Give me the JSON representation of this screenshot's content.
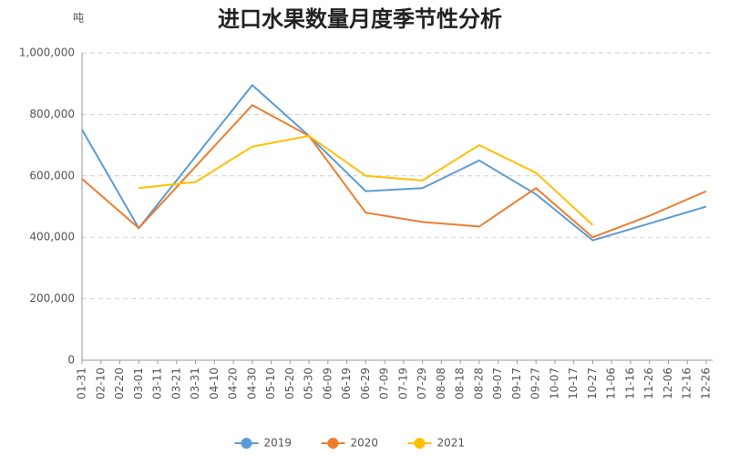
{
  "chart_data": {
    "type": "line",
    "title": "进口水果数量月度季节性分析",
    "y_label": "吨",
    "categories": [
      "01-31",
      "02-10",
      "02-20",
      "03-01",
      "03-11",
      "03-21",
      "03-31",
      "04-10",
      "04-20",
      "04-30",
      "05-10",
      "05-20",
      "05-30",
      "06-09",
      "06-19",
      "06-29",
      "07-09",
      "07-19",
      "07-29",
      "08-08",
      "08-18",
      "08-28",
      "09-07",
      "09-17",
      "09-27",
      "10-07",
      "10-17",
      "10-27",
      "11-06",
      "11-16",
      "11-26",
      "12-06",
      "12-16",
      "12-26"
    ],
    "ylim": [
      0,
      1000000
    ],
    "yticks": [
      0,
      {
        "value": 200000,
        "label": "200,000"
      },
      {
        "value": 400000,
        "label": "400,000"
      },
      {
        "value": 600000,
        "label": "600,000"
      },
      {
        "value": 800000,
        "label": "800,000"
      },
      {
        "value": 1000000,
        "label": "1,000,000"
      }
    ],
    "grid": true,
    "legend": "bottom",
    "series": [
      {
        "name": "2019",
        "color": "#5b9bd5",
        "x": [
          "01-31",
          "03-01",
          "04-30",
          "05-30",
          "06-29",
          "07-29",
          "08-28",
          "09-27",
          "10-27",
          "11-26",
          "12-26"
        ],
        "values": [
          750000,
          430000,
          895000,
          730000,
          550000,
          560000,
          650000,
          540000,
          390000,
          445000,
          500000
        ]
      },
      {
        "name": "2020",
        "color": "#ed7d31",
        "x": [
          "01-31",
          "03-01",
          "04-30",
          "05-30",
          "06-29",
          "07-29",
          "08-28",
          "09-27",
          "10-27",
          "11-26",
          "12-26"
        ],
        "values": [
          590000,
          430000,
          830000,
          730000,
          480000,
          450000,
          435000,
          560000,
          400000,
          470000,
          550000
        ]
      },
      {
        "name": "2021",
        "color": "#ffc000",
        "x": [
          "03-01",
          "03-31",
          "04-30",
          "05-30",
          "06-29",
          "07-29",
          "08-28",
          "09-27",
          "10-27"
        ],
        "values": [
          560000,
          580000,
          695000,
          730000,
          600000,
          585000,
          700000,
          610000,
          440000
        ]
      }
    ]
  }
}
